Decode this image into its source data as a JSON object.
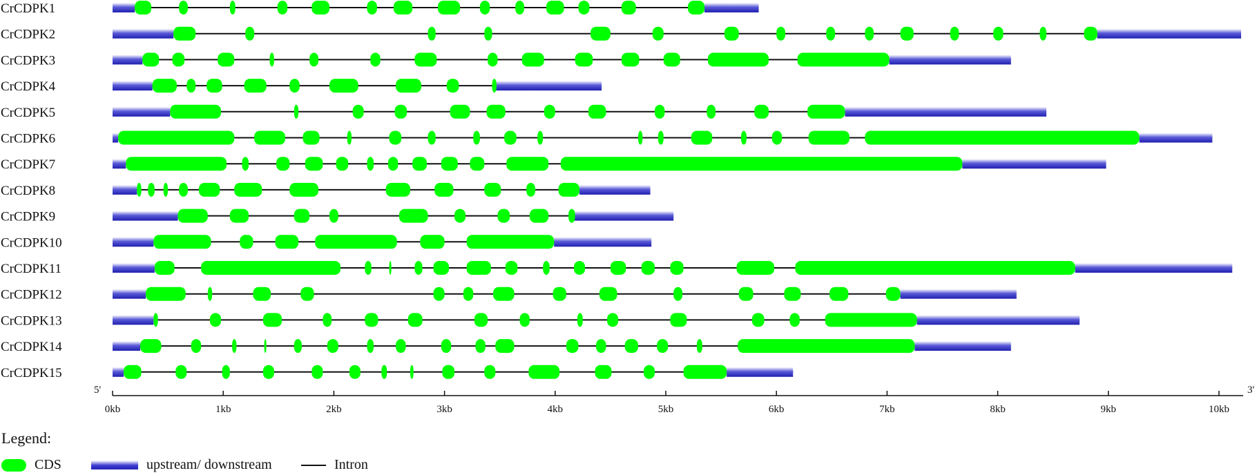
{
  "diagram": {
    "scale": {
      "max_kb": 10.2,
      "ticks": [
        "0kb",
        "1kb",
        "2kb",
        "3kb",
        "4kb",
        "5kb",
        "6kb",
        "7kb",
        "8kb",
        "9kb",
        "10kb"
      ]
    },
    "five_prime_label": "5'",
    "three_prime_label": "3'",
    "colors": {
      "cds": "#00ff00",
      "utr": "#2a2abf",
      "intron": "#111111"
    },
    "genes": [
      {
        "name": "CrCDPK1",
        "length": 5.84,
        "utr": [
          [
            0,
            0.2
          ],
          [
            5.35,
            5.84
          ]
        ],
        "cds": [
          [
            0.2,
            0.35
          ],
          [
            0.6,
            0.68
          ],
          [
            1.06,
            1.11
          ],
          [
            1.49,
            1.58
          ],
          [
            1.8,
            1.96
          ],
          [
            2.3,
            2.39
          ],
          [
            2.54,
            2.71
          ],
          [
            2.94,
            3.14
          ],
          [
            3.32,
            3.41
          ],
          [
            3.64,
            3.72
          ],
          [
            3.92,
            4.08
          ],
          [
            4.21,
            4.31
          ],
          [
            4.6,
            4.73
          ],
          [
            5.2,
            5.35
          ]
        ]
      },
      {
        "name": "CrCDPK2",
        "length": 10.2,
        "utr": [
          [
            0,
            0.55
          ],
          [
            8.9,
            10.2
          ]
        ],
        "cds": [
          [
            0.55,
            0.75
          ],
          [
            1.2,
            1.28
          ],
          [
            2.85,
            2.92
          ],
          [
            3.36,
            3.43
          ],
          [
            4.32,
            4.5
          ],
          [
            4.88,
            4.98
          ],
          [
            5.53,
            5.66
          ],
          [
            6.0,
            6.08
          ],
          [
            6.45,
            6.53
          ],
          [
            6.8,
            6.88
          ],
          [
            7.12,
            7.24
          ],
          [
            7.57,
            7.65
          ],
          [
            7.96,
            8.05
          ],
          [
            8.38,
            8.44
          ],
          [
            8.78,
            8.9
          ]
        ]
      },
      {
        "name": "CrCDPK3",
        "length": 8.12,
        "utr": [
          [
            0,
            0.27
          ],
          [
            7.02,
            8.12
          ]
        ],
        "cds": [
          [
            0.27,
            0.42
          ],
          [
            0.54,
            0.65
          ],
          [
            0.95,
            1.1
          ],
          [
            1.42,
            1.46
          ],
          [
            1.78,
            1.86
          ],
          [
            2.33,
            2.42
          ],
          [
            2.73,
            2.93
          ],
          [
            3.39,
            3.48
          ],
          [
            3.7,
            3.9
          ],
          [
            4.18,
            4.34
          ],
          [
            4.6,
            4.76
          ],
          [
            4.98,
            5.13
          ],
          [
            5.38,
            5.93
          ],
          [
            6.19,
            7.02
          ]
        ]
      },
      {
        "name": "CrCDPK4",
        "length": 4.42,
        "utr": [
          [
            0,
            0.36
          ],
          [
            3.44,
            4.42
          ]
        ],
        "cds": [
          [
            0.36,
            0.58
          ],
          [
            0.67,
            0.75
          ],
          [
            0.85,
            0.99
          ],
          [
            1.19,
            1.39
          ],
          [
            1.6,
            1.69
          ],
          [
            1.96,
            2.22
          ],
          [
            2.56,
            2.79
          ],
          [
            3.02,
            3.13
          ],
          [
            3.43,
            3.47
          ]
        ]
      },
      {
        "name": "CrCDPK5",
        "length": 8.44,
        "utr": [
          [
            0,
            0.52
          ],
          [
            6.62,
            8.44
          ]
        ],
        "cds": [
          [
            0.52,
            0.98
          ],
          [
            1.64,
            1.68
          ],
          [
            2.17,
            2.27
          ],
          [
            2.55,
            2.66
          ],
          [
            3.05,
            3.23
          ],
          [
            3.38,
            3.55
          ],
          [
            3.9,
            4.0
          ],
          [
            4.3,
            4.46
          ],
          [
            4.9,
            4.99
          ],
          [
            5.37,
            5.45
          ],
          [
            5.8,
            5.93
          ],
          [
            6.28,
            6.62
          ]
        ]
      },
      {
        "name": "CrCDPK6",
        "length": 9.94,
        "utr": [
          [
            0,
            0.05
          ],
          [
            9.28,
            9.94
          ]
        ],
        "cds": [
          [
            0.05,
            1.1
          ],
          [
            1.28,
            1.56
          ],
          [
            1.72,
            1.87
          ],
          [
            2.12,
            2.16
          ],
          [
            2.5,
            2.61
          ],
          [
            2.85,
            2.92
          ],
          [
            3.26,
            3.32
          ],
          [
            3.54,
            3.65
          ],
          [
            3.84,
            3.89
          ],
          [
            4.75,
            4.79
          ],
          [
            4.93,
            4.98
          ],
          [
            5.23,
            5.42
          ],
          [
            5.68,
            5.73
          ],
          [
            5.96,
            6.05
          ],
          [
            6.29,
            6.66
          ],
          [
            6.8,
            9.28
          ]
        ]
      },
      {
        "name": "CrCDPK7",
        "length": 8.98,
        "utr": [
          [
            0,
            0.12
          ],
          [
            7.68,
            8.98
          ]
        ],
        "cds": [
          [
            0.12,
            1.03
          ],
          [
            1.17,
            1.23
          ],
          [
            1.48,
            1.6
          ],
          [
            1.74,
            1.9
          ],
          [
            2.02,
            2.13
          ],
          [
            2.3,
            2.36
          ],
          [
            2.49,
            2.58
          ],
          [
            2.71,
            2.84
          ],
          [
            2.97,
            3.12
          ],
          [
            3.23,
            3.36
          ],
          [
            3.56,
            3.94
          ],
          [
            4.05,
            7.68
          ]
        ]
      },
      {
        "name": "CrCDPK8",
        "length": 4.86,
        "utr": [
          [
            0,
            0.22
          ],
          [
            4.22,
            4.86
          ]
        ],
        "cds": [
          [
            0.22,
            0.26
          ],
          [
            0.32,
            0.38
          ],
          [
            0.46,
            0.5
          ],
          [
            0.6,
            0.68
          ],
          [
            0.78,
            0.97
          ],
          [
            1.1,
            1.35
          ],
          [
            1.6,
            1.86
          ],
          [
            2.47,
            2.69
          ],
          [
            2.91,
            3.08
          ],
          [
            3.36,
            3.51
          ],
          [
            3.74,
            3.82
          ],
          [
            4.03,
            4.22
          ]
        ]
      },
      {
        "name": "CrCDPK9",
        "length": 5.07,
        "utr": [
          [
            0,
            0.59
          ],
          [
            4.15,
            5.07
          ]
        ],
        "cds": [
          [
            0.59,
            0.86
          ],
          [
            1.06,
            1.23
          ],
          [
            1.64,
            1.78
          ],
          [
            1.96,
            2.04
          ],
          [
            2.59,
            2.85
          ],
          [
            3.09,
            3.19
          ],
          [
            3.48,
            3.59
          ],
          [
            3.77,
            3.94
          ],
          [
            4.12,
            4.18
          ]
        ]
      },
      {
        "name": "CrCDPK10",
        "length": 4.87,
        "utr": [
          [
            0,
            0.37
          ],
          [
            3.99,
            4.87
          ]
        ],
        "cds": [
          [
            0.37,
            0.89
          ],
          [
            1.15,
            1.27
          ],
          [
            1.47,
            1.68
          ],
          [
            1.83,
            2.57
          ],
          [
            2.78,
            3.0
          ],
          [
            3.2,
            3.99
          ]
        ]
      },
      {
        "name": "CrCDPK11",
        "length": 10.12,
        "utr": [
          [
            0,
            0.38
          ],
          [
            8.7,
            10.12
          ]
        ],
        "cds": [
          [
            0.38,
            0.56
          ],
          [
            0.8,
            2.06
          ],
          [
            2.28,
            2.34
          ],
          [
            2.5,
            2.52
          ],
          [
            2.73,
            2.8
          ],
          [
            2.9,
            3.04
          ],
          [
            3.2,
            3.42
          ],
          [
            3.55,
            3.66
          ],
          [
            3.89,
            3.95
          ],
          [
            4.17,
            4.27
          ],
          [
            4.5,
            4.64
          ],
          [
            4.78,
            4.9
          ],
          [
            5.04,
            5.16
          ],
          [
            5.64,
            5.98
          ],
          [
            6.17,
            8.7
          ]
        ]
      },
      {
        "name": "CrCDPK12",
        "length": 8.17,
        "utr": [
          [
            0,
            0.3
          ],
          [
            7.12,
            8.17
          ]
        ],
        "cds": [
          [
            0.3,
            0.66
          ],
          [
            0.86,
            0.9
          ],
          [
            1.27,
            1.43
          ],
          [
            1.7,
            1.82
          ],
          [
            2.9,
            3.0
          ],
          [
            3.17,
            3.26
          ],
          [
            3.44,
            3.63
          ],
          [
            3.98,
            4.1
          ],
          [
            4.4,
            4.56
          ],
          [
            5.07,
            5.15
          ],
          [
            5.66,
            5.79
          ],
          [
            6.07,
            6.22
          ],
          [
            6.48,
            6.65
          ],
          [
            6.99,
            7.12
          ]
        ]
      },
      {
        "name": "CrCDPK13",
        "length": 8.74,
        "utr": [
          [
            0,
            0.37
          ],
          [
            7.27,
            8.74
          ]
        ],
        "cds": [
          [
            0.37,
            0.41
          ],
          [
            0.88,
            0.98
          ],
          [
            1.36,
            1.53
          ],
          [
            1.9,
            1.98
          ],
          [
            2.28,
            2.4
          ],
          [
            2.67,
            2.8
          ],
          [
            3.27,
            3.39
          ],
          [
            3.68,
            3.77
          ],
          [
            4.2,
            4.25
          ],
          [
            4.47,
            4.57
          ],
          [
            5.04,
            5.19
          ],
          [
            5.78,
            5.89
          ],
          [
            6.12,
            6.21
          ],
          [
            6.44,
            7.27
          ]
        ]
      },
      {
        "name": "CrCDPK14",
        "length": 8.12,
        "utr": [
          [
            0,
            0.25
          ],
          [
            7.25,
            8.12
          ]
        ],
        "cds": [
          [
            0.25,
            0.44
          ],
          [
            0.71,
            0.8
          ],
          [
            1.08,
            1.12
          ],
          [
            1.37,
            1.39
          ],
          [
            1.64,
            1.71
          ],
          [
            1.94,
            2.04
          ],
          [
            2.3,
            2.36
          ],
          [
            2.56,
            2.65
          ],
          [
            2.97,
            3.06
          ],
          [
            3.28,
            3.37
          ],
          [
            3.46,
            3.63
          ],
          [
            4.1,
            4.21
          ],
          [
            4.37,
            4.46
          ],
          [
            4.63,
            4.75
          ],
          [
            4.92,
            5.02
          ],
          [
            5.28,
            5.33
          ],
          [
            5.65,
            7.25
          ]
        ]
      },
      {
        "name": "CrCDPK15",
        "length": 6.15,
        "utr": [
          [
            0,
            0.1
          ],
          [
            5.55,
            6.15
          ]
        ],
        "cds": [
          [
            0.1,
            0.26
          ],
          [
            0.57,
            0.67
          ],
          [
            0.99,
            1.06
          ],
          [
            1.36,
            1.46
          ],
          [
            1.8,
            1.9
          ],
          [
            2.14,
            2.24
          ],
          [
            2.43,
            2.48
          ],
          [
            2.69,
            2.72
          ],
          [
            2.98,
            3.09
          ],
          [
            3.36,
            3.46
          ],
          [
            3.76,
            4.04
          ],
          [
            4.36,
            4.51
          ],
          [
            4.8,
            4.9
          ],
          [
            5.16,
            5.55
          ]
        ]
      }
    ]
  },
  "legend": {
    "title": "Legend:",
    "cds_label": "CDS",
    "utr_label": "upstream/ downstream",
    "intron_label": "Intron"
  }
}
